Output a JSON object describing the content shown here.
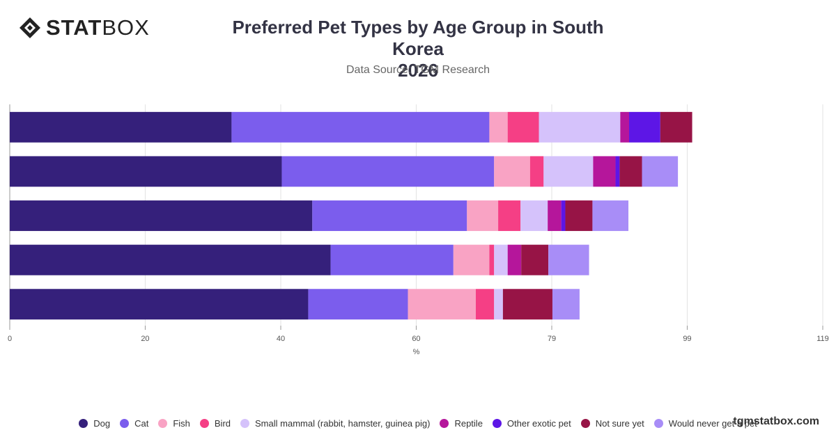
{
  "brand": {
    "logo_bold": "STAT",
    "logo_light": "BOX",
    "watermark": "tgmstatbox.com"
  },
  "icons": {
    "logo": "statbox-diamond-icon"
  },
  "chart_data": {
    "type": "bar",
    "orientation": "horizontal",
    "stacked": true,
    "title_line1": "Preferred Pet Types by Age Group in South Korea",
    "title_line2": "2026",
    "subtitle": "Data Source: TGM Research",
    "xlabel": "%",
    "ylabel": "",
    "xlim": [
      0,
      119.85
    ],
    "x_ticks": [
      "0",
      "20",
      "40",
      "60",
      "79",
      "99",
      "119"
    ],
    "x_tick_values": [
      0,
      19.97,
      39.95,
      59.92,
      79.9,
      99.87,
      119.85
    ],
    "grid": true,
    "legend_position": "bottom",
    "categories": [
      "",
      "",
      "",
      "",
      ""
    ],
    "series": [
      {
        "name": "Dog",
        "color": "#35207b",
        "values": [
          32.7,
          40.1,
          44.6,
          47.3,
          44.0
        ]
      },
      {
        "name": "Cat",
        "color": "#7b5ded",
        "values": [
          38.0,
          31.3,
          22.8,
          18.1,
          14.7
        ]
      },
      {
        "name": "Fish",
        "color": "#f9a3c4",
        "values": [
          2.7,
          5.3,
          4.6,
          5.3,
          10.0
        ]
      },
      {
        "name": "Bird",
        "color": "#f53f85",
        "values": [
          4.6,
          2.0,
          3.3,
          0.7,
          2.7
        ]
      },
      {
        "name": "Small mammal (rabbit, hamster, guinea pig)",
        "color": "#d5c2fb",
        "values": [
          12.0,
          7.3,
          4.0,
          2.0,
          1.3
        ]
      },
      {
        "name": "Reptile",
        "color": "#b5169b",
        "values": [
          1.3,
          3.3,
          2.0,
          2.0,
          0.0
        ]
      },
      {
        "name": "Other exotic pet",
        "color": "#5d16e6",
        "values": [
          4.6,
          0.6,
          0.6,
          0.0,
          0.0
        ]
      },
      {
        "name": "Not sure yet",
        "color": "#971446",
        "values": [
          4.7,
          3.3,
          4.0,
          4.0,
          7.3
        ]
      },
      {
        "name": "Would never get a pet",
        "color": "#a88df7",
        "values": [
          0.0,
          5.3,
          5.3,
          6.0,
          4.0
        ]
      }
    ]
  }
}
